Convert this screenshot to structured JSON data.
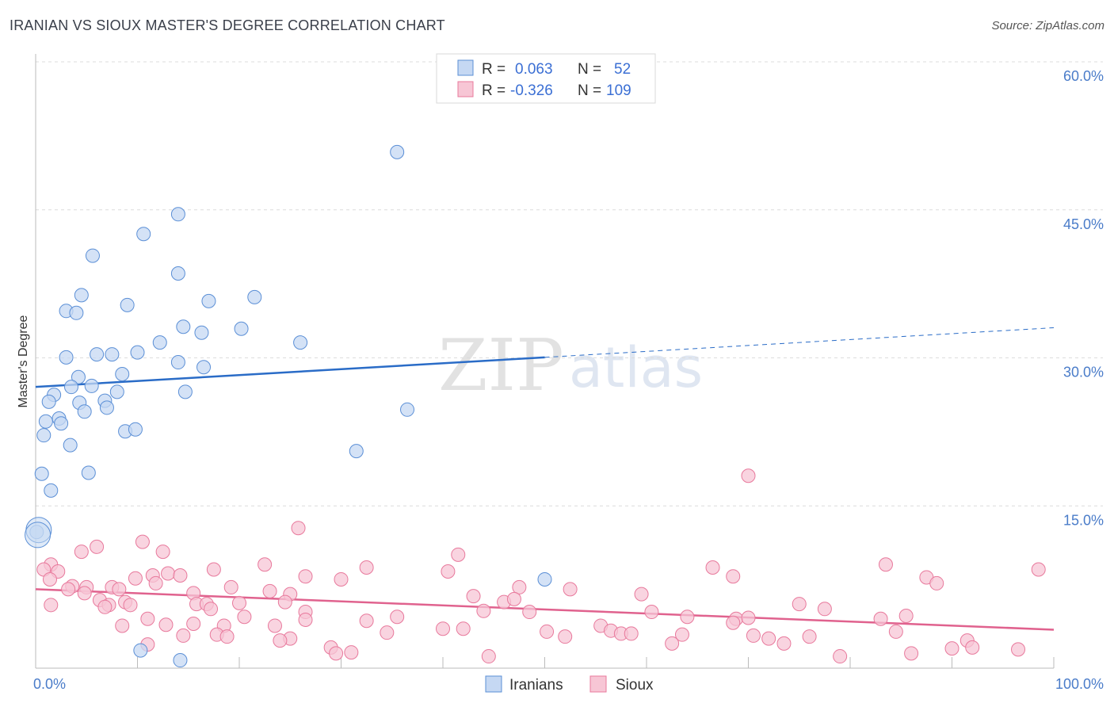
{
  "title": "IRANIAN VS SIOUX MASTER'S DEGREE CORRELATION CHART",
  "source": "Source: ZipAtlas.com",
  "watermark": {
    "zip": "ZIP",
    "atlas": "atlas"
  },
  "colors": {
    "iranians": "#5b8fd6",
    "iranians_fill": "#c5d8f3",
    "sioux": "#e8799c",
    "sioux_fill": "#f7c6d5",
    "iranians_line": "#2a6cc7",
    "sioux_line": "#e0628e"
  },
  "legend": {
    "rows": [
      {
        "r_label": "R = ",
        "r_value": "0.063",
        "n_label": "N = ",
        "n_value": "52"
      },
      {
        "r_label": "R = ",
        "r_value": "-0.326",
        "n_label": "N = ",
        "n_value": "109"
      }
    ]
  },
  "chart_data": {
    "type": "scatter",
    "title": "IRANIAN VS SIOUX MASTER'S DEGREE CORRELATION CHART",
    "ylabel": "Master's Degree",
    "xlabel": "",
    "x_tick_labels": [
      "0.0%",
      "100.0%"
    ],
    "y_tick_labels": [
      "60.0%",
      "45.0%",
      "30.0%",
      "15.0%"
    ],
    "xlim": [
      0,
      100
    ],
    "ylim": [
      0,
      60.5
    ],
    "legend_placement": "top-center",
    "grid": true,
    "series": [
      {
        "name": "Iranians",
        "trend": {
          "x0": 0,
          "y0": 28.5,
          "x1": 50,
          "y1": 31.5,
          "dash_to": 100,
          "dash_y": 34.5
        },
        "points": [
          [
            35.5,
            52.3
          ],
          [
            14.0,
            46.0
          ],
          [
            10.6,
            44.0
          ],
          [
            5.6,
            41.8
          ],
          [
            14.0,
            40.0
          ],
          [
            4.5,
            37.8
          ],
          [
            9.0,
            36.8
          ],
          [
            17.0,
            37.2
          ],
          [
            21.5,
            37.6
          ],
          [
            3.0,
            36.2
          ],
          [
            4.0,
            36.0
          ],
          [
            14.5,
            34.6
          ],
          [
            16.3,
            34.0
          ],
          [
            20.2,
            34.4
          ],
          [
            12.2,
            33.0
          ],
          [
            26.0,
            33.0
          ],
          [
            6.0,
            31.8
          ],
          [
            7.5,
            31.8
          ],
          [
            10.0,
            32.0
          ],
          [
            3.0,
            31.5
          ],
          [
            14.0,
            31.0
          ],
          [
            16.5,
            30.5
          ],
          [
            8.5,
            29.8
          ],
          [
            4.2,
            29.5
          ],
          [
            5.5,
            28.6
          ],
          [
            3.5,
            28.5
          ],
          [
            1.8,
            27.7
          ],
          [
            8.0,
            28.0
          ],
          [
            14.7,
            28.0
          ],
          [
            1.3,
            27.0
          ],
          [
            4.3,
            26.9
          ],
          [
            6.8,
            27.1
          ],
          [
            7.0,
            26.4
          ],
          [
            4.8,
            26.0
          ],
          [
            2.3,
            25.3
          ],
          [
            1.0,
            25.0
          ],
          [
            2.5,
            24.8
          ],
          [
            8.8,
            24.0
          ],
          [
            9.8,
            24.2
          ],
          [
            0.8,
            23.6
          ],
          [
            3.4,
            22.6
          ],
          [
            31.5,
            22.0
          ],
          [
            36.5,
            26.2
          ],
          [
            0.6,
            19.7
          ],
          [
            5.2,
            19.8
          ],
          [
            1.5,
            18.0
          ],
          [
            0.1,
            13.8
          ],
          [
            50.0,
            9.0
          ],
          [
            10.3,
            1.8
          ],
          [
            14.2,
            0.8
          ],
          [
            0.3,
            14.0
          ],
          [
            0.2,
            13.5
          ]
        ]
      },
      {
        "name": "Sioux",
        "trend": {
          "x0": 0,
          "y0": 8.0,
          "x1": 100,
          "y1": 3.9
        },
        "points": [
          [
            70.0,
            19.5
          ],
          [
            25.8,
            14.2
          ],
          [
            10.5,
            12.8
          ],
          [
            6.0,
            12.3
          ],
          [
            4.5,
            11.8
          ],
          [
            12.5,
            11.8
          ],
          [
            41.5,
            11.5
          ],
          [
            1.5,
            10.5
          ],
          [
            0.8,
            10.0
          ],
          [
            22.5,
            10.5
          ],
          [
            32.5,
            10.2
          ],
          [
            66.5,
            10.2
          ],
          [
            83.5,
            10.5
          ],
          [
            98.5,
            10.0
          ],
          [
            2.2,
            9.8
          ],
          [
            9.8,
            9.1
          ],
          [
            11.5,
            9.4
          ],
          [
            13.0,
            9.6
          ],
          [
            14.2,
            9.4
          ],
          [
            17.5,
            10.0
          ],
          [
            26.5,
            9.3
          ],
          [
            30.0,
            9.0
          ],
          [
            40.5,
            9.8
          ],
          [
            68.5,
            9.3
          ],
          [
            87.5,
            9.2
          ],
          [
            1.4,
            9.0
          ],
          [
            3.6,
            8.3
          ],
          [
            5.0,
            8.2
          ],
          [
            7.5,
            8.2
          ],
          [
            11.8,
            8.6
          ],
          [
            19.2,
            8.2
          ],
          [
            47.5,
            8.2
          ],
          [
            52.5,
            8.0
          ],
          [
            88.5,
            8.6
          ],
          [
            3.2,
            8.0
          ],
          [
            4.8,
            7.6
          ],
          [
            8.2,
            8.0
          ],
          [
            15.5,
            7.6
          ],
          [
            23.0,
            7.8
          ],
          [
            25.0,
            7.5
          ],
          [
            43.0,
            7.3
          ],
          [
            59.5,
            7.5
          ],
          [
            6.3,
            6.9
          ],
          [
            7.2,
            6.4
          ],
          [
            8.8,
            6.7
          ],
          [
            15.8,
            6.5
          ],
          [
            16.8,
            6.5
          ],
          [
            20.0,
            6.6
          ],
          [
            24.5,
            6.7
          ],
          [
            46.0,
            6.7
          ],
          [
            47.0,
            7.0
          ],
          [
            75.0,
            6.5
          ],
          [
            1.5,
            6.4
          ],
          [
            6.8,
            6.2
          ],
          [
            9.3,
            6.4
          ],
          [
            17.2,
            6.0
          ],
          [
            26.5,
            5.7
          ],
          [
            44.0,
            5.8
          ],
          [
            48.5,
            5.7
          ],
          [
            60.5,
            5.7
          ],
          [
            77.5,
            6.0
          ],
          [
            11.0,
            5.0
          ],
          [
            20.5,
            5.2
          ],
          [
            26.5,
            4.9
          ],
          [
            32.5,
            4.8
          ],
          [
            35.5,
            5.2
          ],
          [
            64.0,
            5.2
          ],
          [
            68.8,
            5.0
          ],
          [
            70.0,
            5.1
          ],
          [
            83.0,
            5.0
          ],
          [
            85.5,
            5.3
          ],
          [
            8.5,
            4.3
          ],
          [
            12.8,
            4.4
          ],
          [
            15.5,
            4.5
          ],
          [
            18.5,
            4.3
          ],
          [
            23.5,
            4.3
          ],
          [
            42.0,
            4.0
          ],
          [
            55.5,
            4.3
          ],
          [
            56.5,
            3.8
          ],
          [
            57.5,
            3.5
          ],
          [
            63.5,
            3.4
          ],
          [
            68.5,
            4.6
          ],
          [
            14.5,
            3.3
          ],
          [
            17.8,
            3.4
          ],
          [
            18.8,
            3.2
          ],
          [
            25.0,
            3.0
          ],
          [
            34.5,
            3.6
          ],
          [
            40.0,
            4.0
          ],
          [
            50.2,
            3.7
          ],
          [
            52.0,
            3.2
          ],
          [
            58.5,
            3.5
          ],
          [
            70.5,
            3.3
          ],
          [
            72.0,
            3.0
          ],
          [
            76.0,
            3.2
          ],
          [
            84.5,
            3.7
          ],
          [
            91.5,
            2.8
          ],
          [
            11.0,
            2.4
          ],
          [
            24.0,
            2.8
          ],
          [
            29.0,
            2.1
          ],
          [
            29.5,
            1.5
          ],
          [
            31.0,
            1.6
          ],
          [
            44.5,
            1.2
          ],
          [
            62.5,
            2.5
          ],
          [
            73.5,
            2.5
          ],
          [
            90.0,
            2.0
          ],
          [
            96.5,
            1.9
          ],
          [
            92.0,
            2.1
          ],
          [
            86.0,
            1.5
          ],
          [
            79.0,
            1.2
          ]
        ]
      }
    ]
  },
  "bottom_legend": {
    "items": [
      "Iranians",
      "Sioux"
    ]
  }
}
